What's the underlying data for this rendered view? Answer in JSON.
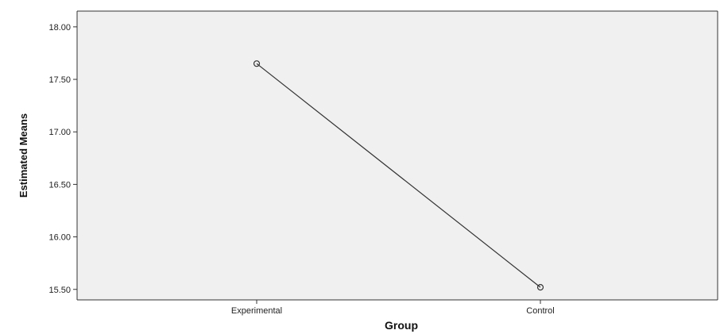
{
  "chart_data": {
    "type": "line",
    "categories": [
      "Experimental",
      "Control"
    ],
    "series": [
      {
        "values": [
          17.65,
          15.52
        ]
      }
    ],
    "title": "",
    "xlabel": "Group",
    "ylabel": "Estimated Means",
    "ylim": [
      15.4,
      18.15
    ],
    "yticks": [
      15.5,
      16.0,
      16.5,
      17.0,
      17.5,
      18.0
    ],
    "ytick_labels": [
      "15.50",
      "16.00",
      "16.50",
      "17.00",
      "17.50",
      "18.00"
    ],
    "grid": false,
    "legend": "none",
    "marker": "open-circle",
    "colors": {
      "plot_background": "#f0f0f0",
      "line": "#333333",
      "axis": "#333333"
    }
  }
}
